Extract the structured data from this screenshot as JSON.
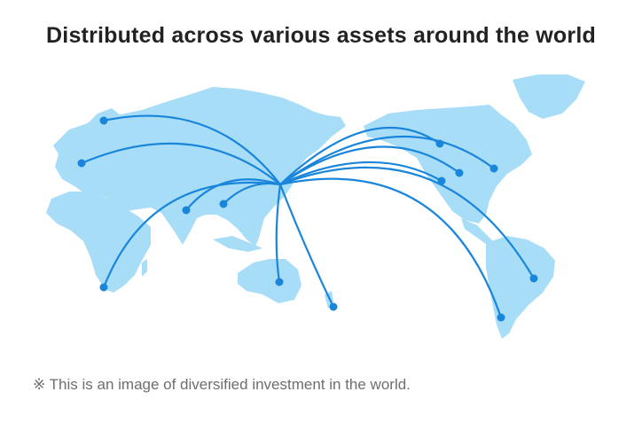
{
  "header": {
    "title": "Distributed across various assets around the world"
  },
  "footer": {
    "note": "※ This is an image of diversified investment in the world."
  },
  "colors": {
    "land": "#a8ddf8",
    "route": "#1a86db",
    "marker": "#1a86db",
    "title_text": "#222222",
    "note_text": "#6e6e6e"
  },
  "map": {
    "hub": "japan",
    "destinations": [
      "northern-europe",
      "western-europe",
      "south-africa",
      "india",
      "southeast-asia",
      "australia",
      "new-zealand",
      "north-america-west",
      "north-america-central",
      "north-america-east",
      "north-america-south",
      "brazil",
      "argentina"
    ]
  }
}
